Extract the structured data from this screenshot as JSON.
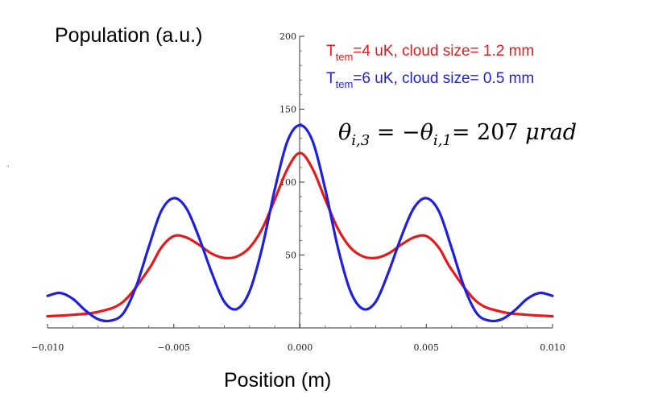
{
  "chart_data": {
    "type": "line",
    "ylabel": "Population (a.u.)",
    "xlabel": "Position (m)",
    "xlim": [
      -0.01,
      0.01
    ],
    "ylim": [
      0,
      200
    ],
    "x_ticks": [
      -0.01,
      -0.005,
      0.0,
      0.005,
      0.01
    ],
    "x_tick_labels": [
      "−0.010",
      "−0.005",
      "0.000",
      "0.005",
      "0.010"
    ],
    "y_ticks": [
      50,
      100,
      150,
      200
    ],
    "y_tick_labels": [
      "50",
      "100",
      "150",
      "200"
    ],
    "grid": false,
    "series": [
      {
        "name": "T_tem=4 uK, cloud size= 1.2 mm",
        "label_main": "T",
        "label_sub": "tem",
        "label_rest": "=4 uK, cloud size= 1.2 mm",
        "color": "#e41a1c",
        "x": [
          -0.01,
          -0.009,
          -0.008,
          -0.007,
          -0.006,
          -0.0055,
          -0.005,
          -0.0045,
          -0.004,
          -0.0035,
          -0.003,
          -0.0025,
          -0.002,
          -0.0015,
          -0.001,
          -0.0005,
          0.0,
          0.0005,
          0.001,
          0.0015,
          0.002,
          0.0025,
          0.003,
          0.0035,
          0.004,
          0.0045,
          0.005,
          0.0055,
          0.006,
          0.007,
          0.008,
          0.009,
          0.01
        ],
        "y": [
          8,
          9,
          11,
          18,
          40,
          55,
          63,
          62,
          57,
          51,
          48,
          49,
          55,
          68,
          88,
          109,
          120,
          109,
          88,
          68,
          55,
          49,
          48,
          51,
          57,
          62,
          63,
          55,
          40,
          18,
          11,
          9,
          8
        ]
      },
      {
        "name": "T_tem=6 uK, cloud size= 0.5 mm",
        "label_main": "T",
        "label_sub": "tem",
        "label_rest": "=6 uK, cloud size= 0.5 mm",
        "color": "#1f1fe0",
        "x": [
          -0.01,
          -0.0095,
          -0.009,
          -0.0085,
          -0.008,
          -0.0075,
          -0.007,
          -0.0065,
          -0.006,
          -0.0055,
          -0.005,
          -0.0045,
          -0.004,
          -0.0035,
          -0.003,
          -0.0025,
          -0.002,
          -0.0015,
          -0.001,
          -0.0005,
          0.0,
          0.0005,
          0.001,
          0.0015,
          0.002,
          0.0025,
          0.003,
          0.0035,
          0.004,
          0.0045,
          0.005,
          0.0055,
          0.006,
          0.0065,
          0.007,
          0.0075,
          0.008,
          0.0085,
          0.009,
          0.0095,
          0.01
        ],
        "y": [
          22,
          24,
          20,
          12,
          6,
          5,
          10,
          28,
          55,
          80,
          89,
          82,
          62,
          38,
          18,
          13,
          25,
          55,
          95,
          128,
          139,
          128,
          95,
          55,
          25,
          13,
          18,
          38,
          62,
          82,
          89,
          80,
          55,
          28,
          10,
          5,
          6,
          12,
          20,
          24,
          22
        ]
      }
    ],
    "annotation": {
      "theta": "θ",
      "sub1": "i,3",
      "eq1": " = −",
      "sub2": "i,1",
      "eq2": "= 207 ",
      "unit": "μrad"
    }
  },
  "stray_mark": "\""
}
